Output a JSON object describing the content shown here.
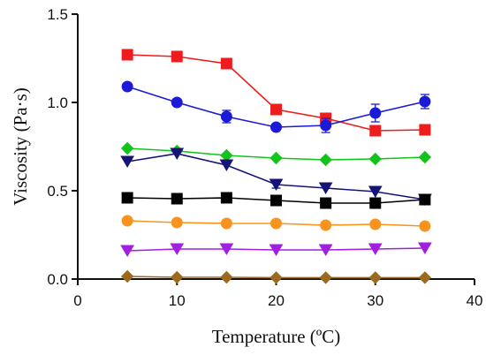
{
  "chart_data": {
    "type": "line",
    "title": "",
    "xlabel": "Temperature (ºC)",
    "ylabel": "Viscosity (Pa·s)",
    "xlim": [
      0,
      40
    ],
    "ylim": [
      0,
      1.5
    ],
    "x_ticks": [
      "0",
      "10",
      "20",
      "30",
      "40"
    ],
    "y_ticks": [
      "0.0",
      "0.5",
      "1.0",
      "1.5"
    ],
    "grid": false,
    "legend": "none",
    "x": [
      5,
      10,
      15,
      20,
      25,
      30,
      35
    ],
    "series": [
      {
        "color": "#ee1c1c",
        "marker": "square",
        "values": [
          1.27,
          1.26,
          1.22,
          0.96,
          0.91,
          0.84,
          0.845
        ],
        "errors": [
          0.01,
          0.01,
          0.02,
          0.02,
          0.02,
          0.02,
          0.02
        ]
      },
      {
        "color": "#1a1ad8",
        "marker": "circle",
        "values": [
          1.09,
          1.0,
          0.92,
          0.86,
          0.87,
          0.94,
          1.005
        ],
        "errors": [
          0.01,
          0.01,
          0.035,
          0.015,
          0.04,
          0.05,
          0.04
        ]
      },
      {
        "color": "#12c41a",
        "marker": "diamond",
        "values": [
          0.74,
          0.725,
          0.7,
          0.685,
          0.675,
          0.68,
          0.69
        ],
        "errors": [
          0.005,
          0.005,
          0.005,
          0.005,
          0.005,
          0.005,
          0.005
        ]
      },
      {
        "color": "#141478",
        "marker": "triangle-down",
        "values": [
          0.665,
          0.71,
          0.645,
          0.535,
          0.515,
          0.495,
          0.45
        ],
        "errors": [
          0.01,
          0.01,
          0.01,
          0.02,
          0.01,
          0.01,
          0.01
        ]
      },
      {
        "color": "#000000",
        "marker": "square",
        "values": [
          0.46,
          0.455,
          0.46,
          0.445,
          0.43,
          0.43,
          0.45
        ],
        "errors": [
          0.01,
          0.01,
          0.01,
          0.01,
          0.01,
          0.015,
          0.01
        ]
      },
      {
        "color": "#f7931e",
        "marker": "circle",
        "values": [
          0.33,
          0.32,
          0.315,
          0.315,
          0.305,
          0.31,
          0.3
        ],
        "errors": [
          0.005,
          0.005,
          0.005,
          0.005,
          0.005,
          0.005,
          0.005
        ]
      },
      {
        "color": "#a11fe0",
        "marker": "triangle-down",
        "values": [
          0.16,
          0.17,
          0.17,
          0.165,
          0.165,
          0.17,
          0.175
        ],
        "errors": [
          0.005,
          0.005,
          0.005,
          0.005,
          0.005,
          0.005,
          0.005
        ]
      },
      {
        "color": "#9c6a1e",
        "marker": "diamond",
        "values": [
          0.015,
          0.01,
          0.01,
          0.008,
          0.008,
          0.008,
          0.008
        ],
        "errors": [
          0.002,
          0.002,
          0.002,
          0.002,
          0.002,
          0.002,
          0.002
        ]
      }
    ]
  }
}
